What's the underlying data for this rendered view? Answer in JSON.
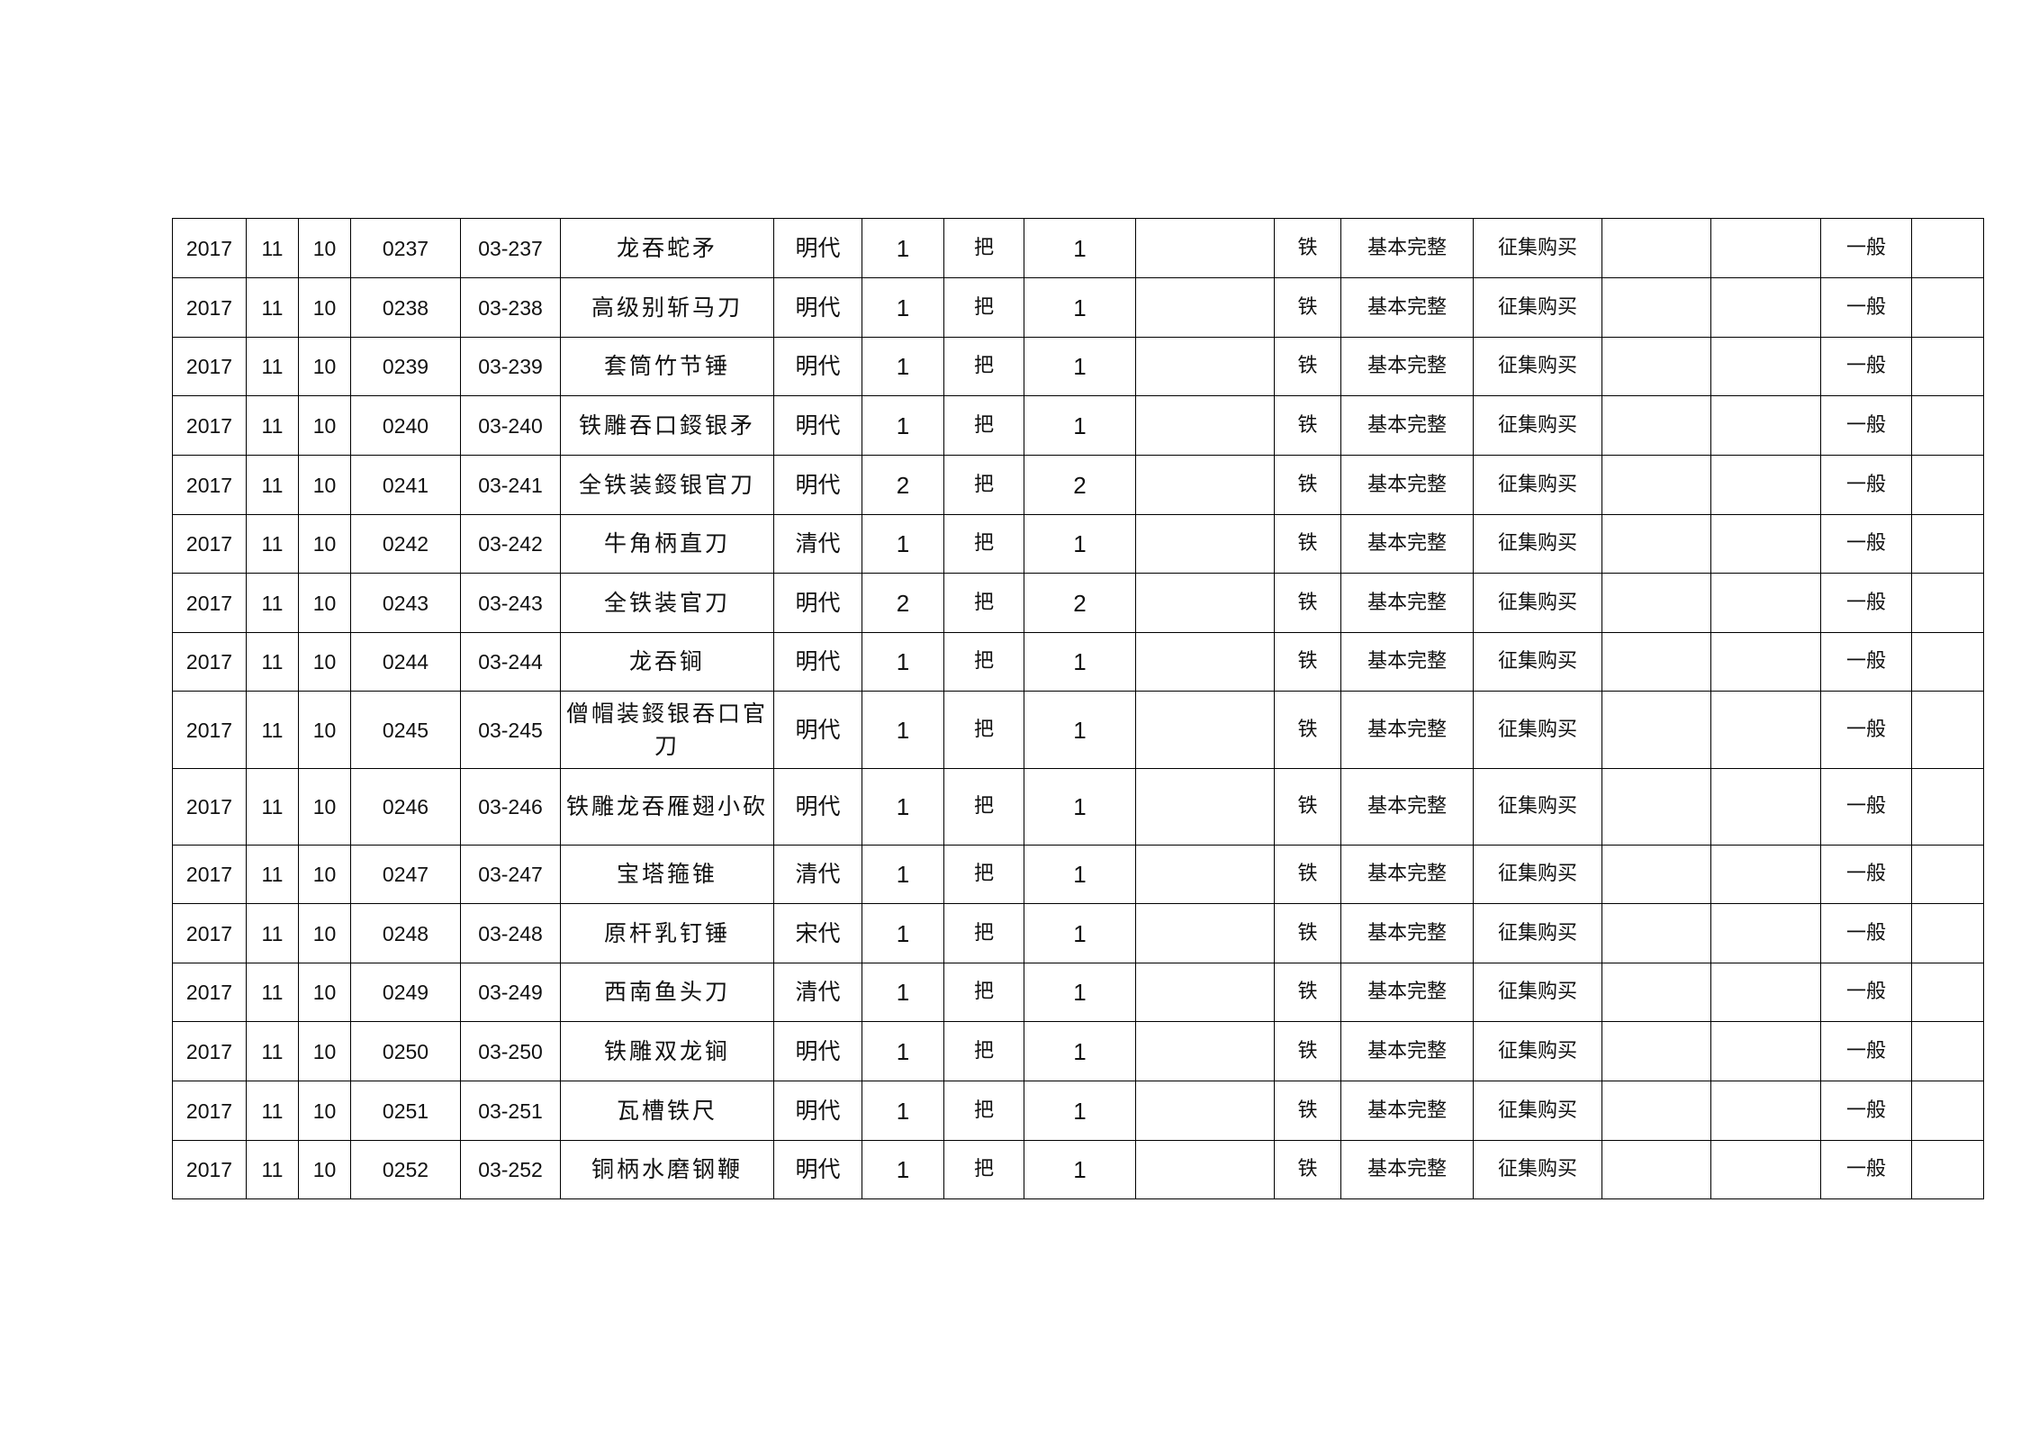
{
  "rows": [
    {
      "year": "2017",
      "month": "11",
      "day": "10",
      "seq": "0237",
      "code": "03-237",
      "name": "龙吞蛇矛",
      "era": "明代",
      "qty": "1",
      "unit": "把",
      "count": "1",
      "c11": "",
      "material": "铁",
      "condition": "基本完整",
      "source": "征集购买",
      "c15": "",
      "c16": "",
      "grade": "一般",
      "c18": ""
    },
    {
      "year": "2017",
      "month": "11",
      "day": "10",
      "seq": "0238",
      "code": "03-238",
      "name": "高级别斩马刀",
      "era": "明代",
      "qty": "1",
      "unit": "把",
      "count": "1",
      "c11": "",
      "material": "铁",
      "condition": "基本完整",
      "source": "征集购买",
      "c15": "",
      "c16": "",
      "grade": "一般",
      "c18": ""
    },
    {
      "year": "2017",
      "month": "11",
      "day": "10",
      "seq": "0239",
      "code": "03-239",
      "name": "套筒竹节锤",
      "era": "明代",
      "qty": "1",
      "unit": "把",
      "count": "1",
      "c11": "",
      "material": "铁",
      "condition": "基本完整",
      "source": "征集购买",
      "c15": "",
      "c16": "",
      "grade": "一般",
      "c18": ""
    },
    {
      "year": "2017",
      "month": "11",
      "day": "10",
      "seq": "0240",
      "code": "03-240",
      "name": "铁雕吞口鋄银矛",
      "era": "明代",
      "qty": "1",
      "unit": "把",
      "count": "1",
      "c11": "",
      "material": "铁",
      "condition": "基本完整",
      "source": "征集购买",
      "c15": "",
      "c16": "",
      "grade": "一般",
      "c18": ""
    },
    {
      "year": "2017",
      "month": "11",
      "day": "10",
      "seq": "0241",
      "code": "03-241",
      "name": "全铁装鋄银官刀",
      "era": "明代",
      "qty": "2",
      "unit": "把",
      "count": "2",
      "c11": "",
      "material": "铁",
      "condition": "基本完整",
      "source": "征集购买",
      "c15": "",
      "c16": "",
      "grade": "一般",
      "c18": ""
    },
    {
      "year": "2017",
      "month": "11",
      "day": "10",
      "seq": "0242",
      "code": "03-242",
      "name": "牛角柄直刀",
      "era": "清代",
      "qty": "1",
      "unit": "把",
      "count": "1",
      "c11": "",
      "material": "铁",
      "condition": "基本完整",
      "source": "征集购买",
      "c15": "",
      "c16": "",
      "grade": "一般",
      "c18": ""
    },
    {
      "year": "2017",
      "month": "11",
      "day": "10",
      "seq": "0243",
      "code": "03-243",
      "name": "全铁装官刀",
      "era": "明代",
      "qty": "2",
      "unit": "把",
      "count": "2",
      "c11": "",
      "material": "铁",
      "condition": "基本完整",
      "source": "征集购买",
      "c15": "",
      "c16": "",
      "grade": "一般",
      "c18": ""
    },
    {
      "year": "2017",
      "month": "11",
      "day": "10",
      "seq": "0244",
      "code": "03-244",
      "name": "龙吞锏",
      "era": "明代",
      "qty": "1",
      "unit": "把",
      "count": "1",
      "c11": "",
      "material": "铁",
      "condition": "基本完整",
      "source": "征集购买",
      "c15": "",
      "c16": "",
      "grade": "一般",
      "c18": ""
    },
    {
      "year": "2017",
      "month": "11",
      "day": "10",
      "seq": "0245",
      "code": "03-245",
      "name": "僧帽装鋄银吞口官刀",
      "era": "明代",
      "qty": "1",
      "unit": "把",
      "count": "1",
      "c11": "",
      "material": "铁",
      "condition": "基本完整",
      "source": "征集购买",
      "c15": "",
      "c16": "",
      "grade": "一般",
      "c18": ""
    },
    {
      "year": "2017",
      "month": "11",
      "day": "10",
      "seq": "0246",
      "code": "03-246",
      "name": "铁雕龙吞雁翅小砍",
      "era": "明代",
      "qty": "1",
      "unit": "把",
      "count": "1",
      "c11": "",
      "material": "铁",
      "condition": "基本完整",
      "source": "征集购买",
      "c15": "",
      "c16": "",
      "grade": "一般",
      "c18": ""
    },
    {
      "year": "2017",
      "month": "11",
      "day": "10",
      "seq": "0247",
      "code": "03-247",
      "name": "宝塔箍锥",
      "era": "清代",
      "qty": "1",
      "unit": "把",
      "count": "1",
      "c11": "",
      "material": "铁",
      "condition": "基本完整",
      "source": "征集购买",
      "c15": "",
      "c16": "",
      "grade": "一般",
      "c18": ""
    },
    {
      "year": "2017",
      "month": "11",
      "day": "10",
      "seq": "0248",
      "code": "03-248",
      "name": "原杆乳钉锤",
      "era": "宋代",
      "qty": "1",
      "unit": "把",
      "count": "1",
      "c11": "",
      "material": "铁",
      "condition": "基本完整",
      "source": "征集购买",
      "c15": "",
      "c16": "",
      "grade": "一般",
      "c18": ""
    },
    {
      "year": "2017",
      "month": "11",
      "day": "10",
      "seq": "0249",
      "code": "03-249",
      "name": "西南鱼头刀",
      "era": "清代",
      "qty": "1",
      "unit": "把",
      "count": "1",
      "c11": "",
      "material": "铁",
      "condition": "基本完整",
      "source": "征集购买",
      "c15": "",
      "c16": "",
      "grade": "一般",
      "c18": ""
    },
    {
      "year": "2017",
      "month": "11",
      "day": "10",
      "seq": "0250",
      "code": "03-250",
      "name": "铁雕双龙锏",
      "era": "明代",
      "qty": "1",
      "unit": "把",
      "count": "1",
      "c11": "",
      "material": "铁",
      "condition": "基本完整",
      "source": "征集购买",
      "c15": "",
      "c16": "",
      "grade": "一般",
      "c18": ""
    },
    {
      "year": "2017",
      "month": "11",
      "day": "10",
      "seq": "0251",
      "code": "03-251",
      "name": "瓦槽铁尺",
      "era": "明代",
      "qty": "1",
      "unit": "把",
      "count": "1",
      "c11": "",
      "material": "铁",
      "condition": "基本完整",
      "source": "征集购买",
      "c15": "",
      "c16": "",
      "grade": "一般",
      "c18": ""
    },
    {
      "year": "2017",
      "month": "11",
      "day": "10",
      "seq": "0252",
      "code": "03-252",
      "name": "铜柄水磨钢鞭",
      "era": "明代",
      "qty": "1",
      "unit": "把",
      "count": "1",
      "c11": "",
      "material": "铁",
      "condition": "基本完整",
      "source": "征集购买",
      "c15": "",
      "c16": "",
      "grade": "一般",
      "c18": ""
    }
  ]
}
